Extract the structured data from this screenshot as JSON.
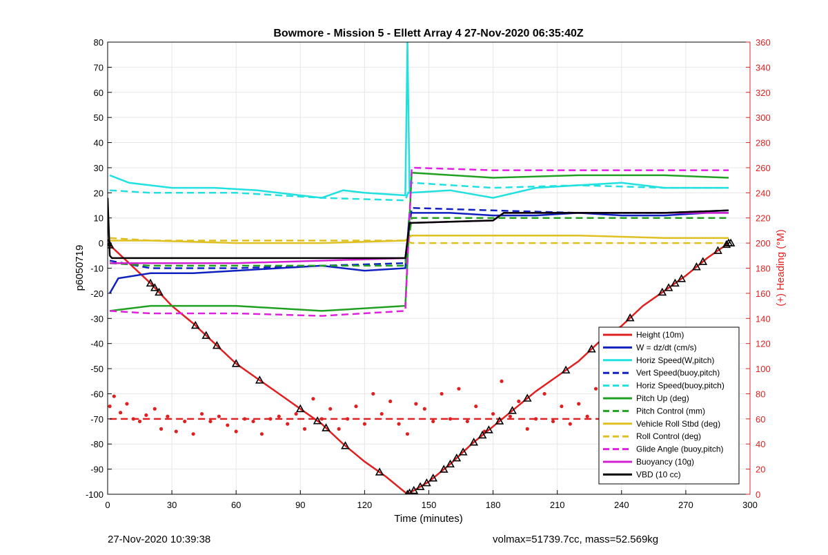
{
  "chart_data": {
    "type": "line",
    "title": "Bowmore - Mission 5 - Ellett Array 4 27-Nov-2020 06:35:40Z",
    "xlabel": "Time (minutes)",
    "ylabel": "p6050719",
    "y2label": "(+) Heading (°M)",
    "xlim": [
      0,
      300
    ],
    "ylim": [
      -100,
      80
    ],
    "y2lim": [
      0,
      360
    ],
    "xticks": [
      0,
      30,
      60,
      90,
      120,
      150,
      180,
      210,
      240,
      270,
      300
    ],
    "yticks": [
      -100,
      -90,
      -80,
      -70,
      -60,
      -50,
      -40,
      -30,
      -20,
      -10,
      0,
      10,
      20,
      30,
      40,
      50,
      60,
      70,
      80
    ],
    "y2ticks": [
      0,
      20,
      40,
      60,
      80,
      100,
      120,
      140,
      160,
      180,
      200,
      220,
      240,
      260,
      280,
      300,
      320,
      340,
      360
    ],
    "grid": true,
    "legend_position": "bottom-right",
    "series": [
      {
        "name": "Height (10m)",
        "color": "#e02020",
        "style": "solid",
        "points": [
          [
            0,
            0
          ],
          [
            10,
            -8
          ],
          [
            20,
            -16
          ],
          [
            30,
            -25
          ],
          [
            40,
            -32
          ],
          [
            50,
            -40
          ],
          [
            60,
            -48
          ],
          [
            70,
            -54
          ],
          [
            80,
            -60
          ],
          [
            90,
            -66
          ],
          [
            100,
            -72
          ],
          [
            110,
            -80
          ],
          [
            120,
            -87
          ],
          [
            130,
            -93
          ],
          [
            140,
            -100
          ],
          [
            150,
            -95
          ],
          [
            160,
            -88
          ],
          [
            170,
            -80
          ],
          [
            180,
            -73
          ],
          [
            190,
            -66
          ],
          [
            200,
            -59
          ],
          [
            210,
            -53
          ],
          [
            220,
            -47
          ],
          [
            230,
            -39
          ],
          [
            240,
            -33
          ],
          [
            250,
            -25
          ],
          [
            260,
            -19
          ],
          [
            270,
            -13
          ],
          [
            280,
            -6
          ],
          [
            290,
            0
          ]
        ]
      },
      {
        "name": "W = dz/dt (cm/s)",
        "color": "#1020c0",
        "style": "solid",
        "points": [
          [
            1,
            -20
          ],
          [
            5,
            -14
          ],
          [
            20,
            -12
          ],
          [
            40,
            -12
          ],
          [
            60,
            -11
          ],
          [
            80,
            -10
          ],
          [
            100,
            -9
          ],
          [
            120,
            -11
          ],
          [
            139,
            -10
          ],
          [
            141,
            12
          ],
          [
            160,
            12
          ],
          [
            180,
            11
          ],
          [
            200,
            11
          ],
          [
            220,
            12
          ],
          [
            240,
            11
          ],
          [
            260,
            11
          ],
          [
            280,
            12
          ],
          [
            290,
            12
          ]
        ]
      },
      {
        "name": "Horiz Speed(W,pitch)",
        "color": "#20e0e0",
        "style": "solid",
        "points": [
          [
            1,
            27
          ],
          [
            10,
            24
          ],
          [
            30,
            22
          ],
          [
            50,
            22
          ],
          [
            70,
            21
          ],
          [
            90,
            19
          ],
          [
            100,
            18
          ],
          [
            110,
            21
          ],
          [
            120,
            20
          ],
          [
            139,
            19
          ],
          [
            140,
            80
          ],
          [
            141,
            20
          ],
          [
            160,
            21
          ],
          [
            180,
            18
          ],
          [
            200,
            22
          ],
          [
            220,
            23
          ],
          [
            240,
            24
          ],
          [
            260,
            22
          ],
          [
            280,
            22
          ],
          [
            290,
            22
          ]
        ]
      },
      {
        "name": "Vert Speed(buoy,pitch)",
        "color": "#1020c0",
        "style": "dashed",
        "points": [
          [
            1,
            -7
          ],
          [
            20,
            -10
          ],
          [
            60,
            -10
          ],
          [
            100,
            -9
          ],
          [
            139,
            -8
          ],
          [
            142,
            14
          ],
          [
            180,
            13
          ],
          [
            220,
            12
          ],
          [
            260,
            12
          ],
          [
            290,
            13
          ]
        ]
      },
      {
        "name": "Horiz Speed(buoy,pitch)",
        "color": "#20e0e0",
        "style": "dashed",
        "points": [
          [
            1,
            21
          ],
          [
            20,
            20
          ],
          [
            60,
            20
          ],
          [
            100,
            18
          ],
          [
            139,
            17
          ],
          [
            142,
            24
          ],
          [
            180,
            22
          ],
          [
            220,
            23
          ],
          [
            260,
            22
          ],
          [
            290,
            22
          ]
        ]
      },
      {
        "name": "Pitch Up (deg)",
        "color": "#20a020",
        "style": "solid",
        "points": [
          [
            1,
            -27
          ],
          [
            20,
            -25
          ],
          [
            60,
            -25
          ],
          [
            100,
            -27
          ],
          [
            139,
            -25
          ],
          [
            142,
            28
          ],
          [
            180,
            26
          ],
          [
            220,
            27
          ],
          [
            260,
            27
          ],
          [
            290,
            26
          ]
        ]
      },
      {
        "name": "Pitch Control (mm)",
        "color": "#20a020",
        "style": "dashed",
        "points": [
          [
            1,
            -8
          ],
          [
            20,
            -9
          ],
          [
            60,
            -9
          ],
          [
            100,
            -9
          ],
          [
            139,
            -9
          ],
          [
            142,
            10
          ],
          [
            180,
            10
          ],
          [
            220,
            10
          ],
          [
            260,
            10
          ],
          [
            290,
            10
          ]
        ]
      },
      {
        "name": "Vehicle Roll Stbd (deg)",
        "color": "#e0c020",
        "style": "solid",
        "points": [
          [
            1,
            1
          ],
          [
            20,
            1
          ],
          [
            60,
            0
          ],
          [
            100,
            0
          ],
          [
            139,
            1
          ],
          [
            142,
            3
          ],
          [
            180,
            3
          ],
          [
            220,
            3
          ],
          [
            260,
            2
          ],
          [
            290,
            2
          ]
        ]
      },
      {
        "name": "Roll Control (deg)",
        "color": "#e0c020",
        "style": "dashed",
        "points": [
          [
            1,
            2
          ],
          [
            20,
            1
          ],
          [
            60,
            1
          ],
          [
            100,
            1
          ],
          [
            139,
            1
          ],
          [
            142,
            0
          ],
          [
            180,
            0
          ],
          [
            220,
            0
          ],
          [
            260,
            0
          ],
          [
            290,
            0
          ]
        ]
      },
      {
        "name": "Glide Angle (buoy,pitch)",
        "color": "#e020e0",
        "style": "dashed",
        "points": [
          [
            1,
            -27
          ],
          [
            20,
            -28
          ],
          [
            60,
            -28
          ],
          [
            100,
            -29
          ],
          [
            139,
            -27
          ],
          [
            142,
            30
          ],
          [
            180,
            29
          ],
          [
            220,
            29
          ],
          [
            260,
            29
          ],
          [
            290,
            29
          ]
        ]
      },
      {
        "name": "Buoyancy (10g)",
        "color": "#d020d0",
        "style": "solid",
        "points": [
          [
            1,
            -8
          ],
          [
            60,
            -8
          ],
          [
            100,
            -7
          ],
          [
            139,
            -6
          ],
          [
            141,
            8
          ],
          [
            180,
            9
          ],
          [
            185,
            12
          ],
          [
            220,
            12
          ],
          [
            260,
            12
          ],
          [
            290,
            12
          ]
        ]
      },
      {
        "name": "VBD (10 cc)",
        "color": "#000000",
        "style": "solid",
        "points": [
          [
            0,
            18
          ],
          [
            1,
            -5
          ],
          [
            2,
            -6
          ],
          [
            60,
            -6
          ],
          [
            100,
            -6
          ],
          [
            139,
            -6
          ],
          [
            141,
            8
          ],
          [
            180,
            9
          ],
          [
            185,
            12
          ],
          [
            220,
            12
          ],
          [
            260,
            12
          ],
          [
            290,
            13
          ]
        ]
      }
    ],
    "heading": {
      "axis": "y2",
      "color": "#e02020",
      "dashed_mean": 60,
      "dashed_range": [
        1,
        290
      ],
      "points": [
        [
          1,
          70
        ],
        [
          3,
          78
        ],
        [
          6,
          65
        ],
        [
          9,
          72
        ],
        [
          12,
          60
        ],
        [
          15,
          58
        ],
        [
          18,
          63
        ],
        [
          22,
          68
        ],
        [
          25,
          52
        ],
        [
          28,
          62
        ],
        [
          32,
          50
        ],
        [
          36,
          58
        ],
        [
          40,
          48
        ],
        [
          44,
          64
        ],
        [
          48,
          58
        ],
        [
          52,
          62
        ],
        [
          56,
          55
        ],
        [
          60,
          50
        ],
        [
          64,
          60
        ],
        [
          68,
          58
        ],
        [
          72,
          48
        ],
        [
          76,
          60
        ],
        [
          80,
          62
        ],
        [
          84,
          56
        ],
        [
          88,
          64
        ],
        [
          92,
          52
        ],
        [
          96,
          76
        ],
        [
          100,
          60
        ],
        [
          104,
          68
        ],
        [
          108,
          52
        ],
        [
          112,
          60
        ],
        [
          116,
          70
        ],
        [
          120,
          56
        ],
        [
          124,
          80
        ],
        [
          128,
          64
        ],
        [
          132,
          74
        ],
        [
          136,
          56
        ],
        [
          140,
          48
        ],
        [
          144,
          72
        ],
        [
          148,
          68
        ],
        [
          152,
          58
        ],
        [
          156,
          80
        ],
        [
          160,
          60
        ],
        [
          164,
          84
        ],
        [
          168,
          58
        ],
        [
          172,
          70
        ],
        [
          176,
          50
        ],
        [
          180,
          64
        ],
        [
          184,
          90
        ],
        [
          188,
          62
        ],
        [
          192,
          74
        ],
        [
          196,
          52
        ],
        [
          200,
          60
        ],
        [
          204,
          80
        ],
        [
          208,
          58
        ],
        [
          212,
          70
        ],
        [
          216,
          56
        ],
        [
          220,
          72
        ],
        [
          224,
          62
        ],
        [
          228,
          84
        ],
        [
          232,
          64
        ],
        [
          236,
          58
        ],
        [
          240,
          72
        ],
        [
          244,
          60
        ],
        [
          248,
          52
        ],
        [
          252,
          70
        ],
        [
          256,
          64
        ],
        [
          260,
          76
        ],
        [
          264,
          60
        ],
        [
          268,
          66
        ],
        [
          272,
          72
        ],
        [
          276,
          60
        ],
        [
          280,
          68
        ],
        [
          284,
          56
        ],
        [
          288,
          66
        ],
        [
          290,
          52
        ]
      ]
    },
    "tick_markers": [
      0,
      1,
      20,
      22,
      24,
      41,
      46,
      51,
      60,
      71,
      90,
      98,
      102,
      111,
      127,
      140,
      141,
      143,
      146,
      149,
      152,
      157,
      160,
      163,
      166,
      171,
      175,
      178,
      183,
      189,
      196,
      214,
      226,
      231,
      236,
      244,
      259,
      262,
      265,
      268,
      275,
      278,
      285,
      289,
      290,
      291
    ]
  },
  "footer": {
    "left": "27-Nov-2020 10:39:38",
    "right": "volmax=51739.7cc, mass=52.569kg"
  }
}
